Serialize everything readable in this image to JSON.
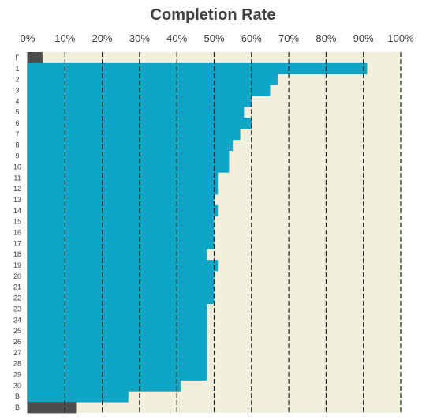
{
  "colors": {
    "plot_background": "#f1f0dc",
    "primary_bar": "#0ea5c6",
    "edge_bar": "#4d4d4d",
    "grid": "#222222"
  },
  "chart_data": {
    "type": "bar",
    "orientation": "horizontal",
    "title": "Completion Rate",
    "xlabel": "",
    "ylabel": "",
    "xlim": [
      0,
      100
    ],
    "x_ticks": [
      "0%",
      "10%",
      "20%",
      "30%",
      "40%",
      "50%",
      "60%",
      "70%",
      "80%",
      "90%",
      "100%"
    ],
    "grid": "vertical dashed",
    "categories": [
      "F",
      "1",
      "2",
      "3",
      "4",
      "5",
      "6",
      "7",
      "8",
      "9",
      "10",
      "11",
      "12",
      "13",
      "14",
      "15",
      "16",
      "17",
      "18",
      "19",
      "20",
      "21",
      "22",
      "23",
      "24",
      "25",
      "26",
      "27",
      "28",
      "29",
      "30",
      "B",
      "B"
    ],
    "values": [
      4,
      91,
      67,
      65,
      60,
      58,
      60,
      57,
      55,
      54,
      54,
      51,
      51,
      50,
      51,
      50,
      50,
      50,
      48,
      51,
      50,
      50,
      50,
      48,
      48,
      48,
      48,
      48,
      48,
      48,
      41,
      27,
      13
    ],
    "bar_colors": [
      "edge",
      "primary",
      "primary",
      "primary",
      "primary",
      "primary",
      "primary",
      "primary",
      "primary",
      "primary",
      "primary",
      "primary",
      "primary",
      "primary",
      "primary",
      "primary",
      "primary",
      "primary",
      "primary",
      "primary",
      "primary",
      "primary",
      "primary",
      "primary",
      "primary",
      "primary",
      "primary",
      "primary",
      "primary",
      "primary",
      "primary",
      "primary",
      "edge"
    ]
  }
}
